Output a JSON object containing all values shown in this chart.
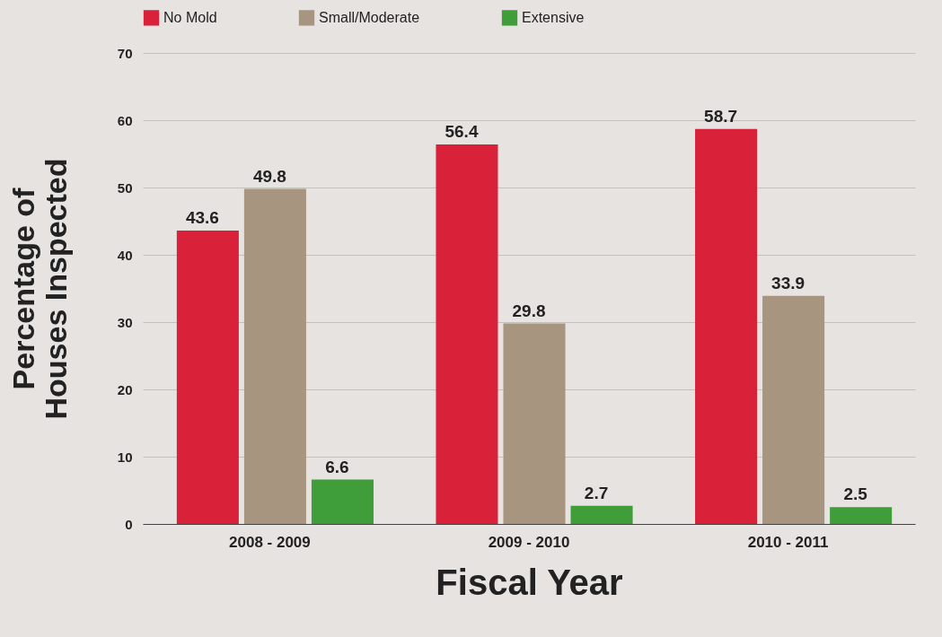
{
  "chart_data": {
    "type": "bar",
    "xlabel": "Fiscal Year",
    "ylabel": "Percentage of Houses Inspected",
    "categories": [
      "2008 - 2009",
      "2009 - 2010",
      "2010 - 2011"
    ],
    "series": [
      {
        "name": "No Mold",
        "color": "#d9223a",
        "values": [
          43.6,
          56.4,
          58.7
        ]
      },
      {
        "name": "Small/Moderate",
        "color": "#a89580",
        "values": [
          49.8,
          29.8,
          33.9
        ]
      },
      {
        "name": "Extensive",
        "color": "#3f9e3a",
        "values": [
          6.6,
          2.7,
          2.5
        ]
      }
    ],
    "ylim": [
      0,
      70
    ],
    "yticks": [
      0,
      10,
      20,
      30,
      40,
      50,
      60,
      70
    ],
    "grid": "y",
    "legend": "top",
    "data_labels": true
  }
}
